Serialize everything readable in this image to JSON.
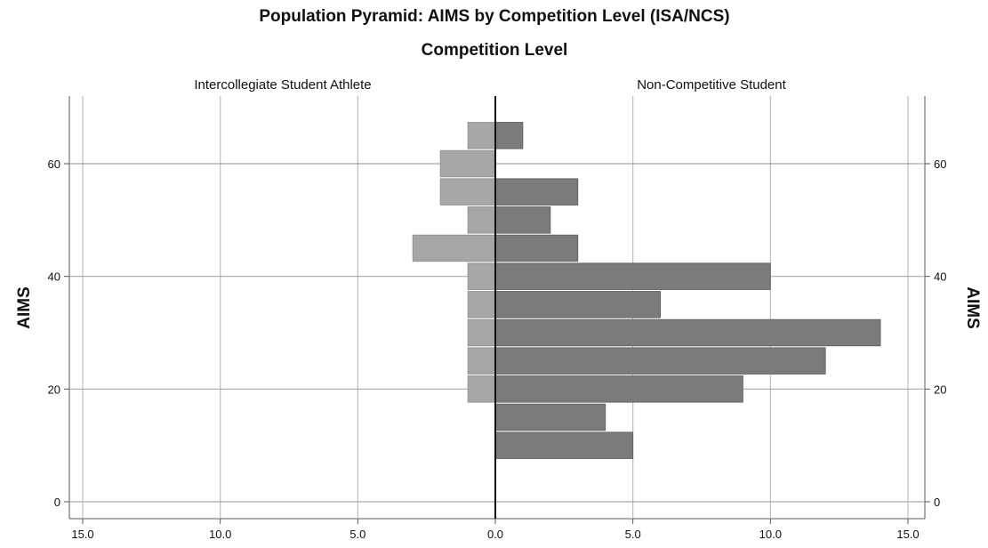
{
  "chart_data": {
    "type": "bar",
    "orientation": "population-pyramid",
    "title": "Population Pyramid: AIMS by Competition Level (ISA/NCS)",
    "subtitle": "Competition Level",
    "ylabel": "AIMS",
    "ylim": [
      -3,
      72
    ],
    "xlim": [
      0,
      15
    ],
    "y_ticks": [
      0,
      20,
      40,
      60
    ],
    "x_ticks": [
      "15.0",
      "10.0",
      "5.0",
      "0.0",
      "5.0",
      "10.0",
      "15.0"
    ],
    "x_tick_values": [
      15,
      10,
      5,
      0,
      5,
      10,
      15
    ],
    "bin_width": 5,
    "bins": [
      10,
      15,
      20,
      25,
      30,
      35,
      40,
      45,
      50,
      55,
      60,
      65
    ],
    "grid": true,
    "series": [
      {
        "name": "Intercollegiate Student Athlete",
        "side": "left",
        "color": "#a6a6a6",
        "values": [
          0,
          0,
          1,
          1,
          1,
          1,
          1,
          3,
          1,
          2,
          2,
          1
        ]
      },
      {
        "name": "Non-Competitive Student",
        "side": "right",
        "color": "#7b7b7b",
        "values": [
          5,
          4,
          9,
          12,
          14,
          6,
          10,
          3,
          2,
          3,
          0,
          1
        ]
      }
    ]
  }
}
